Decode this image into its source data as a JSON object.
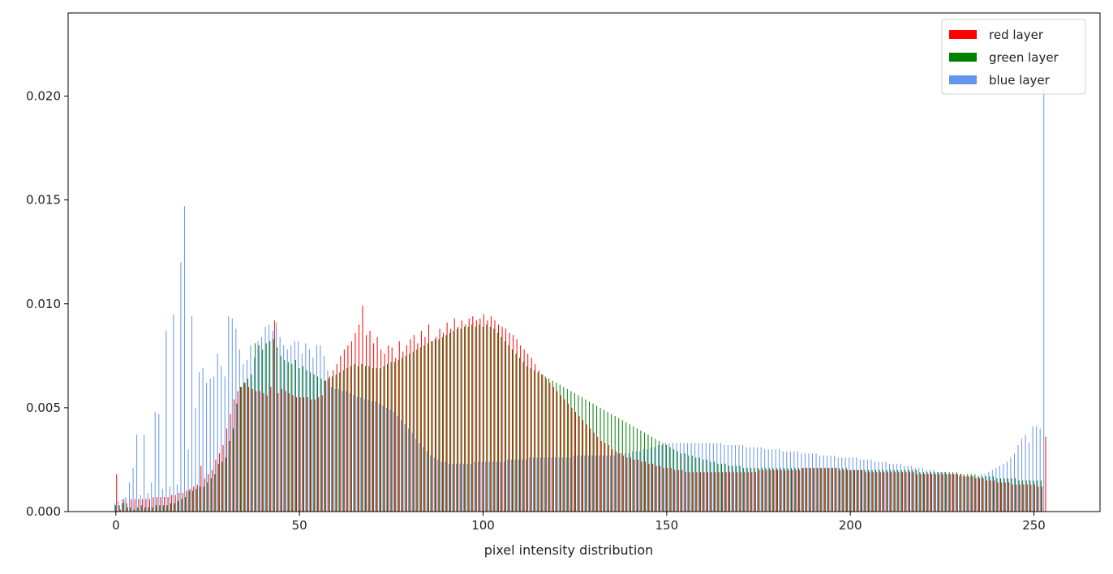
{
  "chart_data": {
    "type": "bar",
    "title": "",
    "xlabel": "pixel intensity distribution",
    "ylabel": "",
    "xlim": [
      -13,
      268
    ],
    "ylim": [
      0,
      0.024
    ],
    "x_ticks": [
      0,
      50,
      100,
      150,
      200,
      250
    ],
    "y_ticks": [
      0.0,
      0.005,
      0.01,
      0.015,
      0.02
    ],
    "y_tick_labels": [
      "0.000",
      "0.005",
      "0.010",
      "0.015",
      "0.020"
    ],
    "grid": false,
    "legend_position": "top-right",
    "x_start": 0,
    "x_step": 1,
    "series": [
      {
        "name": "red layer",
        "color": "#ff0000",
        "values": [
          0.0018,
          0.0001,
          0.0006,
          0.0002,
          0.0006,
          0.0006,
          0.0006,
          0.0006,
          0.0006,
          0.0006,
          0.0007,
          0.0007,
          0.0007,
          0.0007,
          0.0007,
          0.0008,
          0.0008,
          0.0009,
          0.0009,
          0.001,
          0.0011,
          0.0012,
          0.0013,
          0.0022,
          0.0016,
          0.0018,
          0.002,
          0.0025,
          0.0028,
          0.0032,
          0.004,
          0.0047,
          0.0054,
          0.0058,
          0.006,
          0.0062,
          0.006,
          0.0059,
          0.0058,
          0.0058,
          0.0057,
          0.0056,
          0.006,
          0.0092,
          0.0057,
          0.0059,
          0.0058,
          0.0057,
          0.0056,
          0.0055,
          0.0055,
          0.0055,
          0.0055,
          0.0054,
          0.0054,
          0.0055,
          0.0056,
          0.0063,
          0.0065,
          0.0068,
          0.0071,
          0.0075,
          0.0078,
          0.008,
          0.0082,
          0.0086,
          0.009,
          0.0099,
          0.0085,
          0.0087,
          0.0081,
          0.0084,
          0.0078,
          0.0076,
          0.008,
          0.0079,
          0.0074,
          0.0082,
          0.0077,
          0.008,
          0.0083,
          0.0085,
          0.0081,
          0.0087,
          0.0084,
          0.009,
          0.0082,
          0.0084,
          0.0088,
          0.0086,
          0.0091,
          0.0088,
          0.0093,
          0.0089,
          0.0092,
          0.009,
          0.0093,
          0.0094,
          0.0092,
          0.0093,
          0.0095,
          0.0092,
          0.0094,
          0.0092,
          0.009,
          0.0089,
          0.0088,
          0.0086,
          0.0085,
          0.0083,
          0.008,
          0.0078,
          0.0076,
          0.0074,
          0.0071,
          0.0068,
          0.0066,
          0.0064,
          0.0062,
          0.006,
          0.0058,
          0.0056,
          0.0054,
          0.0052,
          0.005,
          0.0048,
          0.0046,
          0.0044,
          0.0042,
          0.004,
          0.0038,
          0.0036,
          0.0034,
          0.0033,
          0.0032,
          0.003,
          0.0029,
          0.0028,
          0.0027,
          0.0026,
          0.0026,
          0.0025,
          0.0025,
          0.0024,
          0.0024,
          0.0023,
          0.0023,
          0.0022,
          0.0022,
          0.0021,
          0.0021,
          0.0021,
          0.002,
          0.002,
          0.002,
          0.0019,
          0.0019,
          0.0019,
          0.0019,
          0.0019,
          0.0019,
          0.0019,
          0.0019,
          0.0019,
          0.0019,
          0.0019,
          0.0019,
          0.0019,
          0.0019,
          0.0019,
          0.0019,
          0.0019,
          0.0019,
          0.0019,
          0.0019,
          0.002,
          0.002,
          0.002,
          0.002,
          0.002,
          0.002,
          0.002,
          0.002,
          0.002,
          0.002,
          0.002,
          0.002,
          0.0021,
          0.0021,
          0.0021,
          0.0021,
          0.0021,
          0.0021,
          0.0021,
          0.0021,
          0.0021,
          0.0021,
          0.002,
          0.002,
          0.002,
          0.002,
          0.002,
          0.002,
          0.002,
          0.0019,
          0.0019,
          0.0019,
          0.0019,
          0.0019,
          0.0019,
          0.0019,
          0.0019,
          0.0019,
          0.0019,
          0.0019,
          0.0019,
          0.0019,
          0.0019,
          0.0018,
          0.0018,
          0.0018,
          0.0018,
          0.0018,
          0.0018,
          0.0018,
          0.0018,
          0.0018,
          0.0018,
          0.0018,
          0.0018,
          0.0018,
          0.0017,
          0.0017,
          0.0017,
          0.0016,
          0.0016,
          0.0016,
          0.0015,
          0.0015,
          0.0015,
          0.0014,
          0.0014,
          0.0014,
          0.0014,
          0.0013,
          0.0013,
          0.0013,
          0.0013,
          0.0013,
          0.0013,
          0.0013,
          0.0012,
          0.0012,
          0.0036
        ]
      },
      {
        "name": "green layer",
        "color": "#008000",
        "values": [
          0.0003,
          0.0003,
          0.0004,
          0.0004,
          0.0002,
          0.0001,
          0.0002,
          0.0003,
          0.0002,
          0.0002,
          0.0002,
          0.0003,
          0.0003,
          0.0003,
          0.0003,
          0.0004,
          0.0004,
          0.0005,
          0.0006,
          0.0007,
          0.001,
          0.001,
          0.0011,
          0.0012,
          0.0012,
          0.0014,
          0.0016,
          0.0018,
          0.0023,
          0.0024,
          0.0026,
          0.0034,
          0.004,
          0.0052,
          0.006,
          0.0062,
          0.0064,
          0.0066,
          0.0081,
          0.008,
          0.0078,
          0.0081,
          0.0082,
          0.0083,
          0.0079,
          0.0075,
          0.0073,
          0.0072,
          0.0071,
          0.0073,
          0.0069,
          0.007,
          0.0068,
          0.0067,
          0.0066,
          0.0065,
          0.0064,
          0.0063,
          0.0064,
          0.0065,
          0.0066,
          0.0067,
          0.0068,
          0.0069,
          0.007,
          0.0071,
          0.007,
          0.0071,
          0.007,
          0.007,
          0.0069,
          0.0069,
          0.0069,
          0.007,
          0.0071,
          0.0072,
          0.0072,
          0.0073,
          0.0074,
          0.0075,
          0.0076,
          0.0077,
          0.0078,
          0.0079,
          0.008,
          0.0081,
          0.0082,
          0.0083,
          0.0083,
          0.0084,
          0.0085,
          0.0086,
          0.0087,
          0.0088,
          0.0088,
          0.0089,
          0.0089,
          0.009,
          0.0089,
          0.009,
          0.0089,
          0.009,
          0.0089,
          0.0088,
          0.0086,
          0.0084,
          0.0082,
          0.008,
          0.0078,
          0.0076,
          0.0074,
          0.0072,
          0.007,
          0.0069,
          0.0068,
          0.0067,
          0.0066,
          0.0065,
          0.0064,
          0.0063,
          0.0062,
          0.0061,
          0.006,
          0.0059,
          0.0058,
          0.0057,
          0.0056,
          0.0055,
          0.0054,
          0.0053,
          0.0052,
          0.0051,
          0.005,
          0.0049,
          0.0048,
          0.0047,
          0.0046,
          0.0045,
          0.0044,
          0.0043,
          0.0042,
          0.0041,
          0.004,
          0.0039,
          0.0038,
          0.0037,
          0.0036,
          0.0035,
          0.0034,
          0.0033,
          0.0032,
          0.0031,
          0.003,
          0.0029,
          0.0028,
          0.0028,
          0.0027,
          0.0027,
          0.0026,
          0.0026,
          0.0025,
          0.0025,
          0.0024,
          0.0024,
          0.0023,
          0.0023,
          0.0023,
          0.0022,
          0.0022,
          0.0022,
          0.0022,
          0.0021,
          0.0021,
          0.0021,
          0.0021,
          0.0021,
          0.0021,
          0.0021,
          0.0021,
          0.0021,
          0.0021,
          0.0021,
          0.0021,
          0.0021,
          0.0021,
          0.0021,
          0.0021,
          0.0021,
          0.0021,
          0.0021,
          0.0021,
          0.0021,
          0.0021,
          0.0021,
          0.0021,
          0.0021,
          0.0021,
          0.0021,
          0.0021,
          0.0021,
          0.002,
          0.002,
          0.002,
          0.002,
          0.002,
          0.002,
          0.002,
          0.002,
          0.002,
          0.002,
          0.002,
          0.002,
          0.002,
          0.002,
          0.002,
          0.002,
          0.002,
          0.002,
          0.002,
          0.0019,
          0.0019,
          0.0019,
          0.0019,
          0.0019,
          0.0019,
          0.0019,
          0.0019,
          0.0019,
          0.0019,
          0.0019,
          0.0018,
          0.0018,
          0.0018,
          0.0018,
          0.0018,
          0.0017,
          0.0017,
          0.0017,
          0.0017,
          0.0017,
          0.0016,
          0.0016,
          0.0016,
          0.0016,
          0.0016,
          0.0016,
          0.0015,
          0.0015,
          0.0015,
          0.0015,
          0.0015,
          0.0015,
          0.0015
        ]
      },
      {
        "name": "blue layer",
        "color": "#6495ed",
        "values": [
          0.0004,
          0.0005,
          0.0006,
          0.0007,
          0.0014,
          0.0021,
          0.0037,
          0.0008,
          0.0037,
          0.0009,
          0.0014,
          0.0048,
          0.0047,
          0.0011,
          0.0087,
          0.0012,
          0.0095,
          0.0013,
          0.012,
          0.0147,
          0.003,
          0.0094,
          0.005,
          0.0067,
          0.0069,
          0.0062,
          0.0064,
          0.0065,
          0.0076,
          0.007,
          0.0065,
          0.0094,
          0.0093,
          0.0088,
          0.0078,
          0.0071,
          0.0073,
          0.008,
          0.0074,
          0.0082,
          0.0084,
          0.0089,
          0.009,
          0.0087,
          0.0091,
          0.0084,
          0.008,
          0.0078,
          0.008,
          0.0082,
          0.0082,
          0.0076,
          0.0081,
          0.0078,
          0.0074,
          0.008,
          0.008,
          0.0075,
          0.0068,
          0.006,
          0.0059,
          0.0059,
          0.0058,
          0.0058,
          0.0057,
          0.0056,
          0.0055,
          0.0055,
          0.0054,
          0.0054,
          0.0053,
          0.0053,
          0.0052,
          0.0051,
          0.005,
          0.0049,
          0.0048,
          0.0046,
          0.0044,
          0.0042,
          0.004,
          0.0038,
          0.0035,
          0.0033,
          0.0031,
          0.0029,
          0.0027,
          0.0026,
          0.0025,
          0.0024,
          0.0024,
          0.0023,
          0.0023,
          0.0023,
          0.0023,
          0.0023,
          0.0023,
          0.0023,
          0.0024,
          0.0024,
          0.0024,
          0.0024,
          0.0024,
          0.0024,
          0.0024,
          0.0024,
          0.0024,
          0.0025,
          0.0025,
          0.0025,
          0.0025,
          0.0025,
          0.0025,
          0.0026,
          0.0026,
          0.0026,
          0.0026,
          0.0026,
          0.0026,
          0.0026,
          0.0026,
          0.0026,
          0.0026,
          0.0026,
          0.0026,
          0.0027,
          0.0027,
          0.0027,
          0.0027,
          0.0027,
          0.0027,
          0.0027,
          0.0027,
          0.0027,
          0.0027,
          0.0027,
          0.0027,
          0.0028,
          0.0028,
          0.0028,
          0.0028,
          0.0029,
          0.0029,
          0.0029,
          0.003,
          0.003,
          0.0031,
          0.0031,
          0.0032,
          0.0032,
          0.0033,
          0.0033,
          0.0033,
          0.0033,
          0.0033,
          0.0033,
          0.0033,
          0.0033,
          0.0033,
          0.0033,
          0.0033,
          0.0033,
          0.0033,
          0.0033,
          0.0033,
          0.0033,
          0.0032,
          0.0032,
          0.0032,
          0.0032,
          0.0032,
          0.0032,
          0.0031,
          0.0031,
          0.0031,
          0.0031,
          0.0031,
          0.003,
          0.003,
          0.003,
          0.003,
          0.003,
          0.0029,
          0.0029,
          0.0029,
          0.0029,
          0.0029,
          0.0028,
          0.0028,
          0.0028,
          0.0028,
          0.0028,
          0.0027,
          0.0027,
          0.0027,
          0.0027,
          0.0027,
          0.0026,
          0.0026,
          0.0026,
          0.0026,
          0.0026,
          0.0026,
          0.0025,
          0.0025,
          0.0025,
          0.0025,
          0.0024,
          0.0024,
          0.0024,
          0.0024,
          0.0023,
          0.0023,
          0.0023,
          0.0023,
          0.0022,
          0.0022,
          0.0022,
          0.0021,
          0.0021,
          0.0021,
          0.002,
          0.002,
          0.002,
          0.0019,
          0.0019,
          0.0019,
          0.0018,
          0.0018,
          0.0018,
          0.0017,
          0.0017,
          0.0017,
          0.0017,
          0.0017,
          0.0017,
          0.0018,
          0.0018,
          0.0019,
          0.002,
          0.0021,
          0.0022,
          0.0023,
          0.0024,
          0.0026,
          0.0028,
          0.0032,
          0.0035,
          0.0037,
          0.0033,
          0.0041,
          0.0041,
          0.004,
          0.0213
        ]
      }
    ]
  }
}
